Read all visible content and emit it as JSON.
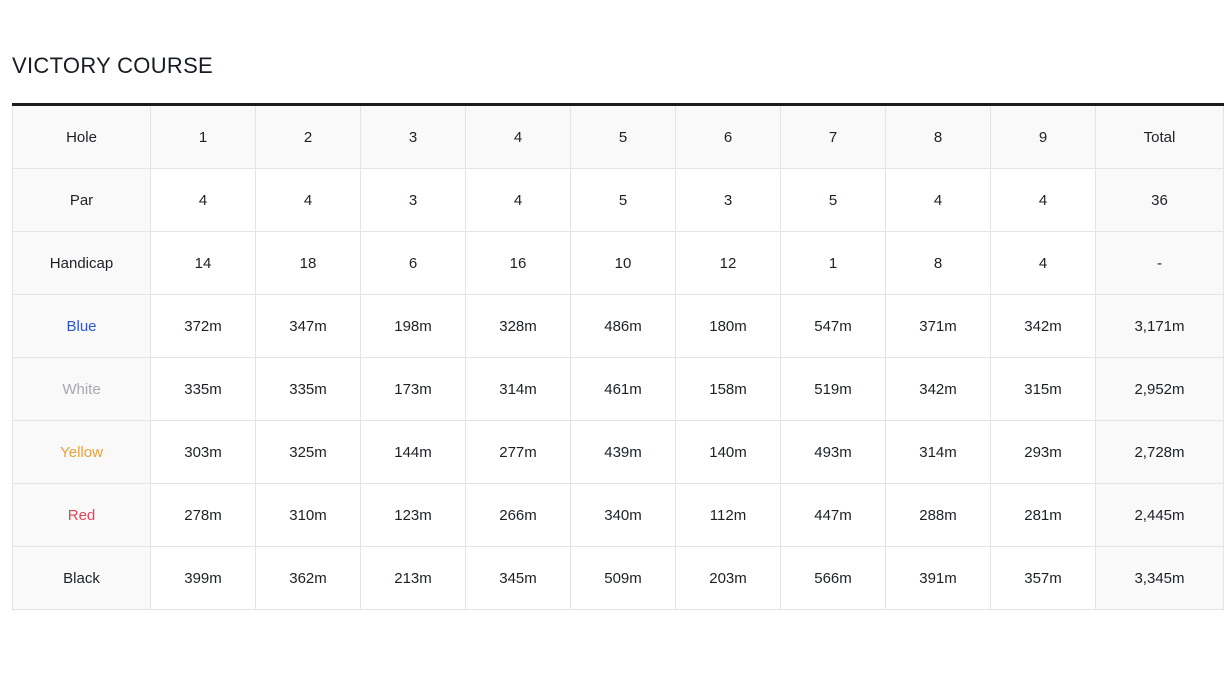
{
  "page": {
    "title": "VICTORY COURSE"
  },
  "colors": {
    "top_border": "#1c1c1c",
    "cell_border": "#e4e4e7",
    "shaded_bg": "#f9f9fa",
    "text": "#1d2025",
    "tee_blue": "#2b57c8",
    "tee_white": "#a9a9ad",
    "tee_yellow": "#e6a23c",
    "tee_red": "#db4a5a",
    "tee_black": "#1d2025"
  },
  "table": {
    "columns": [
      "Hole",
      "1",
      "2",
      "3",
      "4",
      "5",
      "6",
      "7",
      "8",
      "9",
      "Total"
    ],
    "rows": [
      {
        "label": "Par",
        "values": [
          "4",
          "4",
          "3",
          "4",
          "5",
          "3",
          "5",
          "4",
          "4",
          "36"
        ]
      },
      {
        "label": "Handicap",
        "values": [
          "14",
          "18",
          "6",
          "16",
          "10",
          "12",
          "1",
          "8",
          "4",
          "-"
        ]
      },
      {
        "label": "Blue",
        "label_color": "#2b57c8",
        "values": [
          "372m",
          "347m",
          "198m",
          "328m",
          "486m",
          "180m",
          "547m",
          "371m",
          "342m",
          "3,171m"
        ]
      },
      {
        "label": "White",
        "label_color": "#a9a9ad",
        "values": [
          "335m",
          "335m",
          "173m",
          "314m",
          "461m",
          "158m",
          "519m",
          "342m",
          "315m",
          "2,952m"
        ]
      },
      {
        "label": "Yellow",
        "label_color": "#e6a23c",
        "values": [
          "303m",
          "325m",
          "144m",
          "277m",
          "439m",
          "140m",
          "493m",
          "314m",
          "293m",
          "2,728m"
        ]
      },
      {
        "label": "Red",
        "label_color": "#db4a5a",
        "values": [
          "278m",
          "310m",
          "123m",
          "266m",
          "340m",
          "112m",
          "447m",
          "288m",
          "281m",
          "2,445m"
        ]
      },
      {
        "label": "Black",
        "values": [
          "399m",
          "362m",
          "213m",
          "345m",
          "509m",
          "203m",
          "566m",
          "391m",
          "357m",
          "3,345m"
        ]
      }
    ]
  }
}
